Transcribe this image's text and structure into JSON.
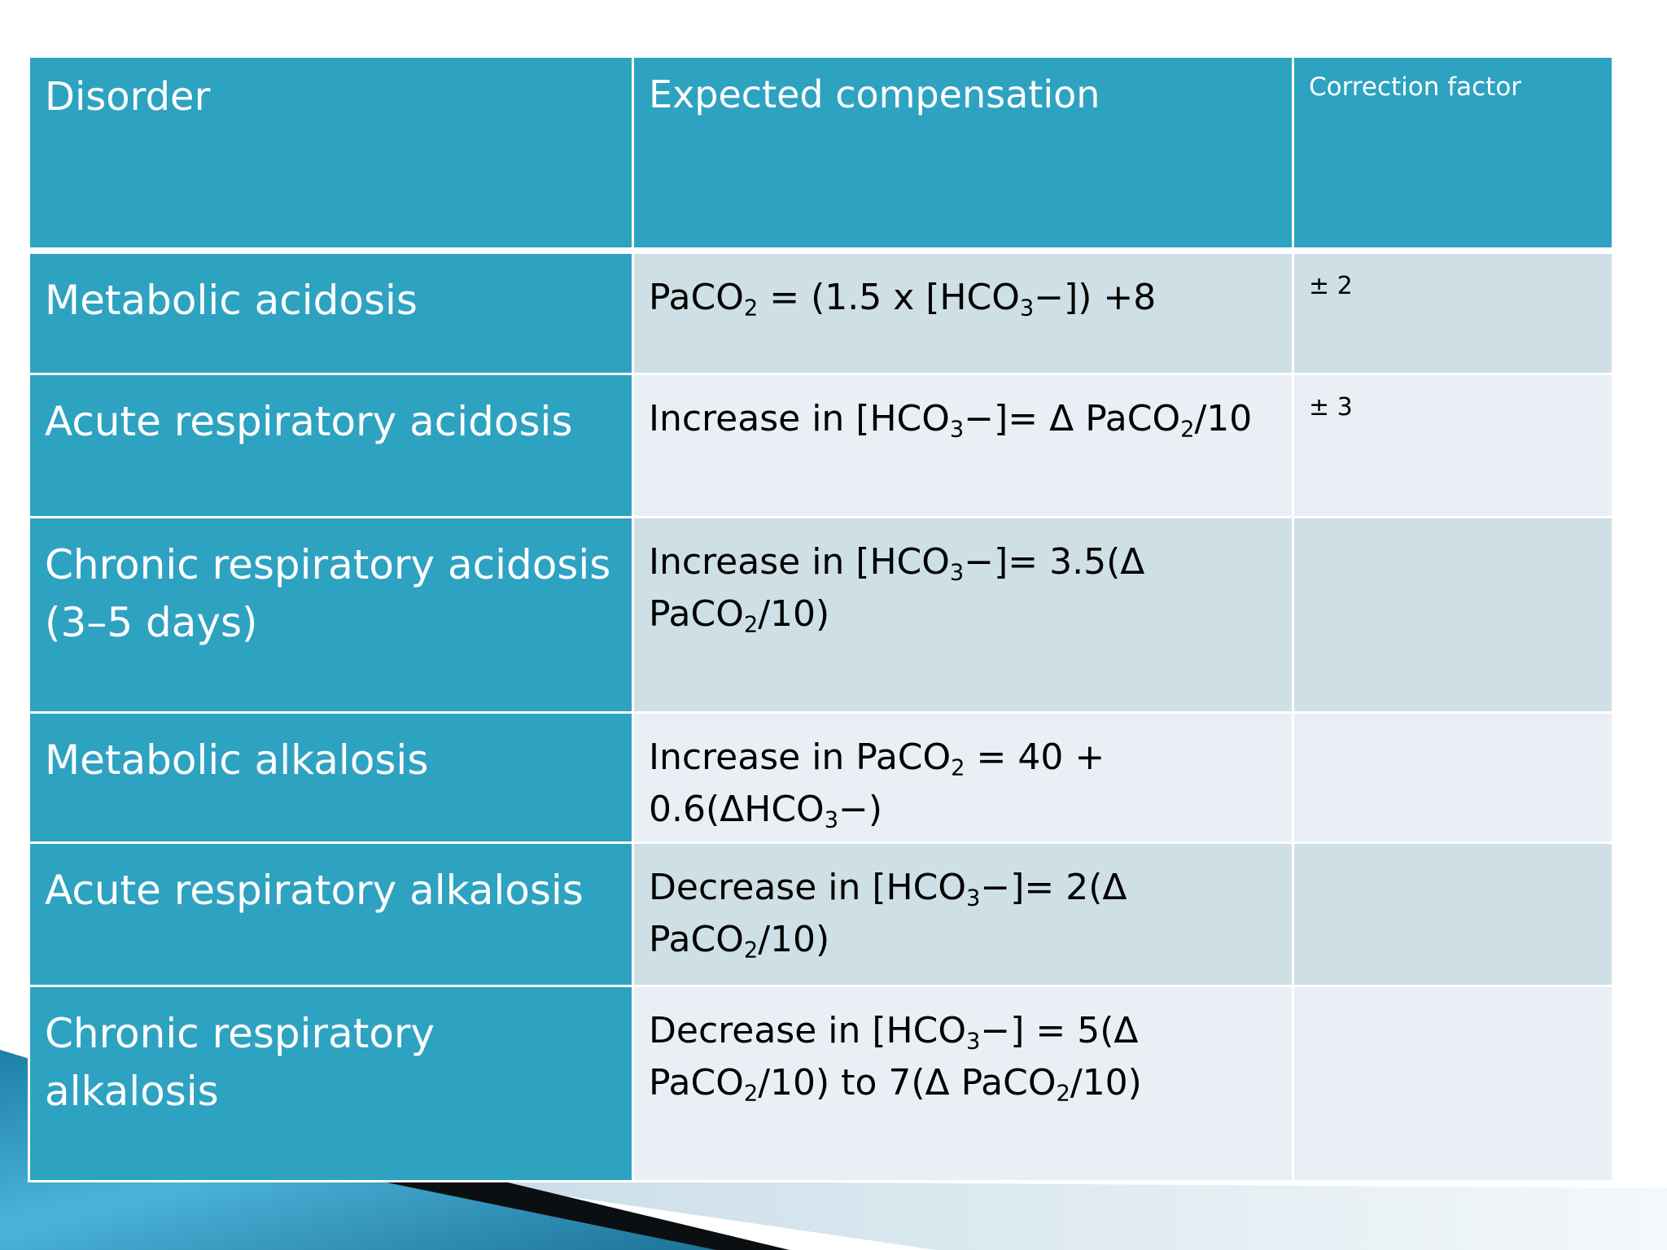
{
  "table": {
    "headers": [
      "Disorder",
      "Expected compensation",
      "Correction factor"
    ],
    "rows": [
      {
        "disorder": "Metabolic acidosis",
        "compensation": [
          {
            "t": "PaCO"
          },
          {
            "sub": "2"
          },
          {
            "t": " = (1.5 x [HCO"
          },
          {
            "sub": "3"
          },
          {
            "t": "−]) +8"
          }
        ],
        "factor": "± 2"
      },
      {
        "disorder": "Acute respiratory acidosis",
        "compensation": [
          {
            "t": "Increase  in  [HCO"
          },
          {
            "sub": "3"
          },
          {
            "t": "−]= Δ PaCO"
          },
          {
            "sub": "2"
          },
          {
            "t": "/10"
          }
        ],
        "factor": "± 3"
      },
      {
        "disorder": "Chronic respiratory acidosis (3–5 days)",
        "compensation": [
          {
            "t": "Increase  in  [HCO"
          },
          {
            "sub": "3"
          },
          {
            "t": "−]= 3.5(Δ PaCO"
          },
          {
            "sub": "2"
          },
          {
            "t": "/10)"
          }
        ],
        "factor": ""
      },
      {
        "disorder": "Metabolic alkalosis",
        "compensation": [
          {
            "t": "Increase in PaCO"
          },
          {
            "sub": "2"
          },
          {
            "t": " = 40 + 0.6(ΔHCO"
          },
          {
            "sub": "3"
          },
          {
            "t": "−)"
          }
        ],
        "factor": ""
      },
      {
        "disorder": "Acute respiratory alkalosis",
        "compensation": [
          {
            "t": "Decrease in  [HCO"
          },
          {
            "sub": "3"
          },
          {
            "t": "−]= 2(Δ PaCO"
          },
          {
            "sub": "2"
          },
          {
            "t": "/10)"
          }
        ],
        "factor": ""
      },
      {
        "disorder": "Chronic respiratory alkalosis",
        "compensation": [
          {
            "t": "Decrease in  [HCO"
          },
          {
            "sub": "3"
          },
          {
            "t": "−] = 5(Δ PaCO"
          },
          {
            "sub": "2"
          },
          {
            "t": "/10) to 7(Δ PaCO"
          },
          {
            "sub": "2"
          },
          {
            "t": "/10)"
          }
        ],
        "factor": ""
      }
    ]
  },
  "colors": {
    "header_bg": "#2ea2c1",
    "disorder_bg": "#2ea2c1",
    "row_band_dark": "#cfdfe6",
    "row_band_light": "#e9eff5",
    "header_text": "#ffffff"
  }
}
